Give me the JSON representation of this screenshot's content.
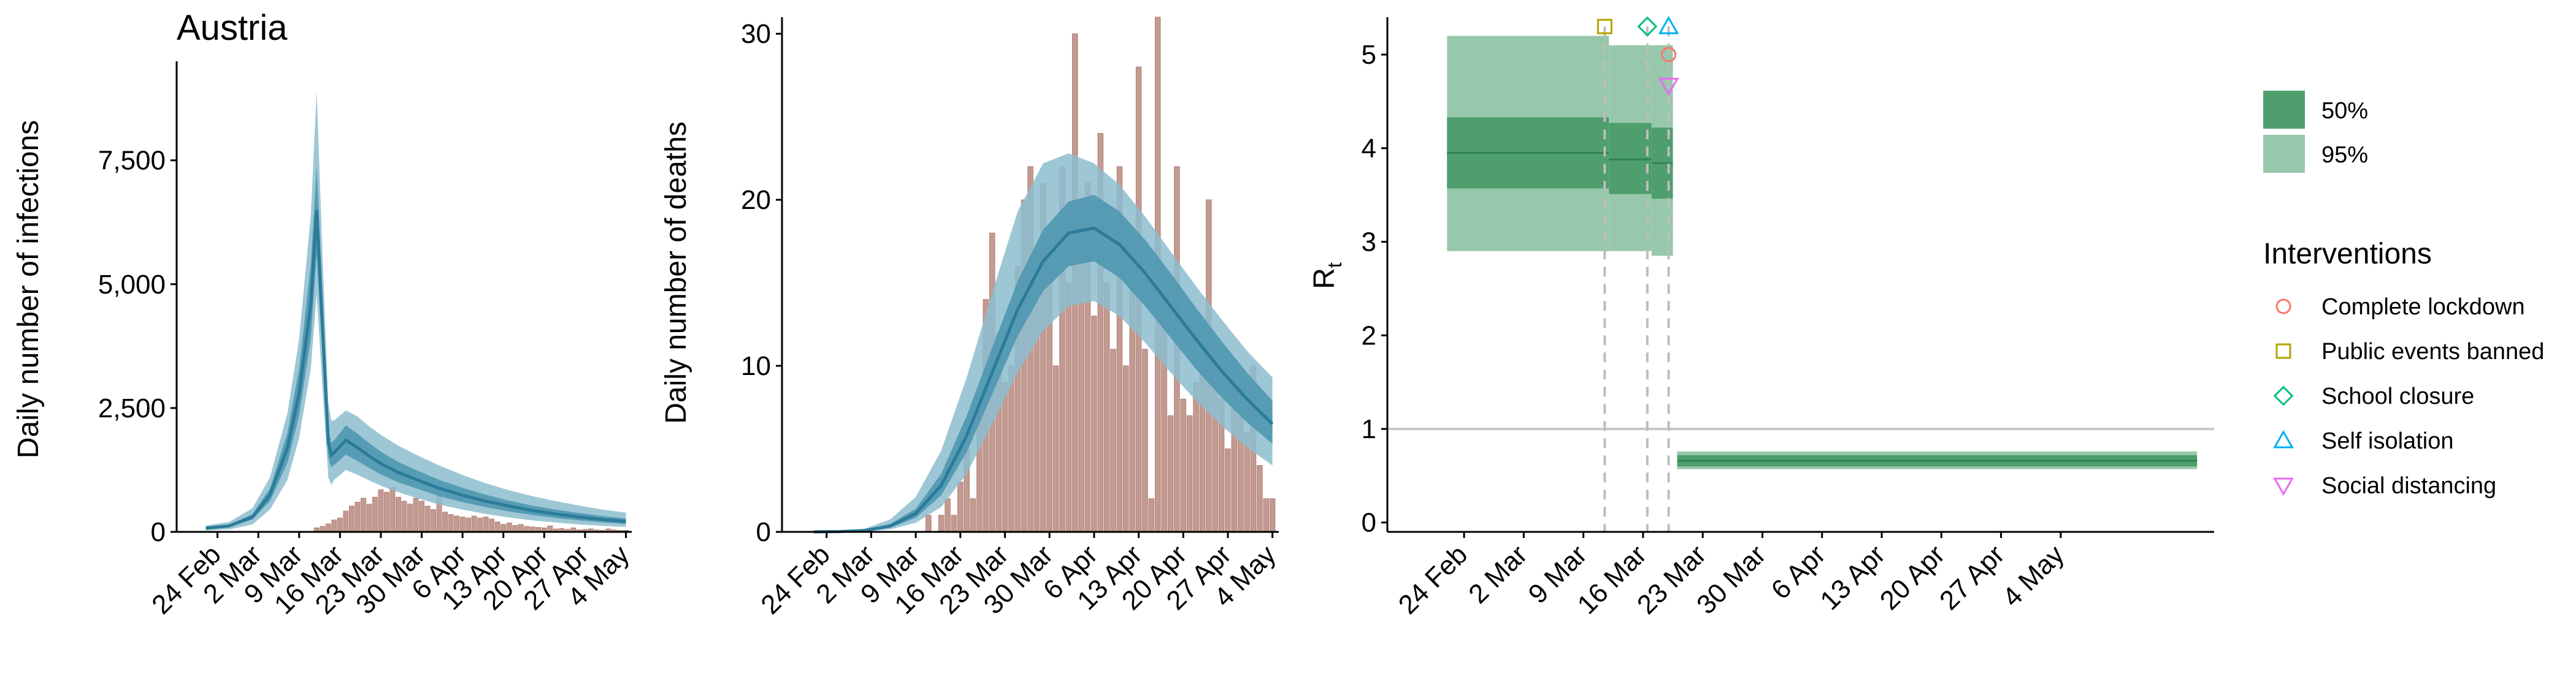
{
  "colors": {
    "infection_ci95": "#8dbdcf",
    "infection_ci50": "#4f97b1",
    "infection_line": "#2b7b99",
    "bars": "#c39a91",
    "bars_edge": "#b07f74",
    "rt_ci95": "#98c8ab",
    "rt_ci50": "#4f9e6e",
    "rt_line": "#2f8353",
    "reference_line": "#c8c8c8",
    "vline": "#bdbdbd",
    "complete_lockdown": "#f8766d",
    "public_events_banned": "#b5a300",
    "school_closure": "#00bf7d",
    "self_isolation": "#00b0f6",
    "social_distancing": "#e76bf3"
  },
  "chart_data": [
    {
      "type": "area",
      "title": "Austria",
      "ylabel": "Daily number of infections",
      "xlabel": "",
      "ylim": [
        0,
        9500
      ],
      "xlim_days": [
        -5,
        73
      ],
      "x_ticks": [
        "24 Feb",
        "2 Mar",
        "9 Mar",
        "16 Mar",
        "23 Mar",
        "30 Mar",
        "6 Apr",
        "13 Apr",
        "20 Apr",
        "27 Apr",
        "4 May"
      ],
      "y_ticks": [
        "0",
        "2,500",
        "5,000",
        "7,500"
      ],
      "y_tick_values": [
        0,
        2500,
        5000,
        7500
      ],
      "x_start_date": "22 Feb",
      "series": [
        {
          "kind": "line_with_bands",
          "x_days": [
            0,
            4,
            8,
            11,
            14,
            16,
            18,
            19,
            20,
            21,
            21.5,
            22,
            24,
            26,
            28,
            30,
            33,
            36,
            40,
            44,
            48,
            52,
            56,
            60,
            64,
            68,
            72
          ],
          "median": [
            75,
            120,
            300,
            750,
            1700,
            2800,
            4600,
            6500,
            4100,
            1800,
            1550,
            1600,
            1850,
            1700,
            1530,
            1380,
            1200,
            1060,
            880,
            740,
            620,
            520,
            430,
            360,
            300,
            250,
            210
          ],
          "lo50": [
            60,
            100,
            250,
            620,
            1400,
            2350,
            3900,
            5600,
            3600,
            1500,
            1300,
            1350,
            1560,
            1430,
            1290,
            1160,
            1000,
            880,
            720,
            600,
            500,
            410,
            340,
            280,
            230,
            190,
            160
          ],
          "hi50": [
            90,
            140,
            360,
            880,
            2000,
            3300,
            5400,
            7400,
            4800,
            2100,
            1800,
            1850,
            2150,
            1980,
            1790,
            1620,
            1410,
            1250,
            1050,
            890,
            750,
            630,
            530,
            450,
            380,
            320,
            270
          ],
          "lo95": [
            30,
            50,
            150,
            450,
            1050,
            1900,
            3300,
            4800,
            2900,
            1100,
            950,
            1050,
            1250,
            1150,
            1040,
            930,
            800,
            690,
            550,
            450,
            360,
            290,
            230,
            190,
            150,
            120,
            100
          ],
          "hi95": [
            130,
            200,
            480,
            1100,
            2400,
            3900,
            6400,
            8900,
            5600,
            2600,
            2250,
            2250,
            2450,
            2330,
            2130,
            1960,
            1740,
            1560,
            1340,
            1150,
            980,
            840,
            720,
            620,
            530,
            450,
            390
          ]
        },
        {
          "kind": "bars",
          "x_days": [
            19,
            20,
            21,
            22,
            23,
            24,
            25,
            26,
            27,
            28,
            29,
            30,
            31,
            32,
            33,
            34,
            35,
            36,
            37,
            38,
            39,
            40,
            41,
            42,
            43,
            44,
            45,
            46,
            47,
            48,
            49,
            50,
            51,
            52,
            53,
            54,
            55,
            56,
            57,
            58,
            59,
            60,
            61,
            62,
            63,
            64,
            65,
            66,
            67,
            68,
            69,
            70,
            71,
            72
          ],
          "values": [
            80,
            110,
            160,
            240,
            280,
            420,
            520,
            600,
            680,
            560,
            700,
            850,
            800,
            900,
            700,
            620,
            560,
            680,
            620,
            520,
            450,
            860,
            400,
            350,
            320,
            300,
            280,
            320,
            280,
            300,
            260,
            200,
            150,
            180,
            130,
            150,
            110,
            100,
            90,
            80,
            120,
            60,
            70,
            50,
            80,
            40,
            50,
            60,
            40,
            30,
            60,
            40,
            30,
            30
          ]
        }
      ]
    },
    {
      "type": "area",
      "ylabel": "Daily number of deaths",
      "xlabel": "",
      "ylim": [
        0,
        31
      ],
      "xlim_days": [
        -5,
        73
      ],
      "x_ticks": [
        "24 Feb",
        "2 Mar",
        "9 Mar",
        "16 Mar",
        "23 Mar",
        "30 Mar",
        "6 Apr",
        "13 Apr",
        "20 Apr",
        "27 Apr",
        "4 May"
      ],
      "y_ticks": [
        "0",
        "10",
        "20",
        "30"
      ],
      "y_tick_values": [
        0,
        10,
        20,
        30
      ],
      "x_start_date": "22 Feb",
      "series": [
        {
          "kind": "line_with_bands",
          "x_days": [
            0,
            4,
            8,
            12,
            16,
            20,
            24,
            28,
            32,
            36,
            40,
            44,
            48,
            52,
            56,
            60,
            64,
            68,
            72
          ],
          "median": [
            0,
            0.02,
            0.08,
            0.35,
            1.1,
            2.8,
            5.8,
            9.6,
            13.4,
            16.3,
            18.0,
            18.3,
            17.3,
            15.6,
            13.6,
            11.6,
            9.7,
            8.0,
            6.5
          ],
          "lo50": [
            0,
            0.01,
            0.05,
            0.25,
            0.85,
            2.2,
            4.8,
            8.3,
            11.8,
            14.5,
            16.0,
            16.3,
            15.3,
            13.6,
            11.7,
            9.8,
            8.1,
            6.6,
            5.3
          ],
          "hi50": [
            0,
            0.03,
            0.12,
            0.48,
            1.4,
            3.5,
            7.0,
            11.1,
            15.1,
            18.2,
            19.9,
            20.3,
            19.3,
            17.6,
            15.6,
            13.5,
            11.5,
            9.6,
            7.9
          ],
          "lo95": [
            0,
            0.01,
            0.03,
            0.15,
            0.55,
            1.5,
            3.5,
            6.5,
            9.6,
            12.1,
            13.6,
            13.9,
            13.0,
            11.4,
            9.6,
            7.9,
            6.4,
            5.1,
            4.0
          ],
          "hi95": [
            0,
            0.05,
            0.2,
            0.75,
            2.1,
            4.9,
            9.3,
            14.4,
            19.3,
            22.2,
            22.8,
            22.2,
            20.9,
            19.0,
            16.9,
            14.8,
            12.8,
            10.9,
            9.3
          ]
        },
        {
          "kind": "bars",
          "x_days": [
            18,
            19,
            20,
            21,
            22,
            23,
            24,
            25,
            26,
            27,
            28,
            29,
            30,
            31,
            32,
            33,
            34,
            35,
            36,
            37,
            38,
            39,
            40,
            41,
            42,
            43,
            44,
            45,
            46,
            47,
            48,
            49,
            50,
            51,
            52,
            53,
            54,
            55,
            56,
            57,
            58,
            59,
            60,
            61,
            62,
            63,
            64,
            65,
            66,
            67,
            68,
            69,
            70,
            71,
            72
          ],
          "values": [
            1,
            0,
            1,
            2,
            1,
            3,
            5,
            2,
            8,
            14,
            18,
            12,
            9,
            10,
            16,
            20,
            22,
            14,
            21,
            18,
            10,
            22,
            15,
            30,
            20,
            21,
            13,
            24,
            15,
            11,
            22,
            10,
            18,
            28,
            11,
            2,
            31,
            13,
            7,
            22,
            8,
            7,
            9,
            10,
            20,
            11,
            8,
            5,
            9,
            7,
            6,
            10,
            4,
            2,
            2
          ]
        }
      ]
    },
    {
      "type": "area",
      "ylabel": "R",
      "ylabel_subscript": "t",
      "xlabel": "",
      "ylim": [
        -0.1,
        5.4
      ],
      "xlim_days": [
        -7,
        90
      ],
      "x_ticks": [
        "24 Feb",
        "2 Mar",
        "9 Mar",
        "16 Mar",
        "23 Mar",
        "30 Mar",
        "6 Apr",
        "13 Apr",
        "20 Apr",
        "27 Apr",
        "4 May"
      ],
      "y_ticks": [
        "0",
        "1",
        "2",
        "3",
        "4",
        "5"
      ],
      "y_tick_values": [
        0,
        1,
        2,
        3,
        4,
        5
      ],
      "x_start_date": "22 Feb",
      "reference_line": 1,
      "segments": [
        {
          "x": [
            0,
            19
          ],
          "median": 3.95,
          "lo50": 3.57,
          "hi50": 4.33,
          "lo95": 2.9,
          "hi95": 5.2
        },
        {
          "x": [
            19,
            24
          ],
          "median": 3.88,
          "lo50": 3.51,
          "hi50": 4.27,
          "lo95": 2.9,
          "hi95": 5.1
        },
        {
          "x": [
            24,
            26.5
          ],
          "median": 3.84,
          "lo50": 3.46,
          "hi50": 4.22,
          "lo95": 2.85,
          "hi95": 5.1
        },
        {
          "x": [
            27,
            88
          ],
          "median": 0.66,
          "lo50": 0.6,
          "hi50": 0.72,
          "lo95": 0.57,
          "hi95": 0.76
        }
      ],
      "intervention_lines_days": [
        18.5,
        23.5,
        26
      ],
      "interventions": [
        {
          "name": "Complete lockdown",
          "day": 26,
          "shape": "circle",
          "level": 5
        },
        {
          "name": "Public events banned",
          "day": 18.5,
          "shape": "square",
          "level": 5.3
        },
        {
          "name": "School closure",
          "day": 23.5,
          "shape": "diamond",
          "level": 5.3
        },
        {
          "name": "Self isolation",
          "day": 26,
          "shape": "triangle",
          "level": 5.3
        },
        {
          "name": "Social distancing",
          "day": 26,
          "shape": "triangle-down",
          "level": 4.67
        }
      ]
    }
  ],
  "legend": {
    "bands": [
      {
        "label": "50%"
      },
      {
        "label": "95%"
      }
    ],
    "interventions_title": "Interventions",
    "interventions": [
      {
        "label": "Complete lockdown",
        "icon": "circle-icon"
      },
      {
        "label": "Public events banned",
        "icon": "square-icon"
      },
      {
        "label": "School closure",
        "icon": "diamond-icon"
      },
      {
        "label": "Self isolation",
        "icon": "triangle-icon"
      },
      {
        "label": "Social distancing",
        "icon": "triangle-down-icon"
      }
    ]
  }
}
